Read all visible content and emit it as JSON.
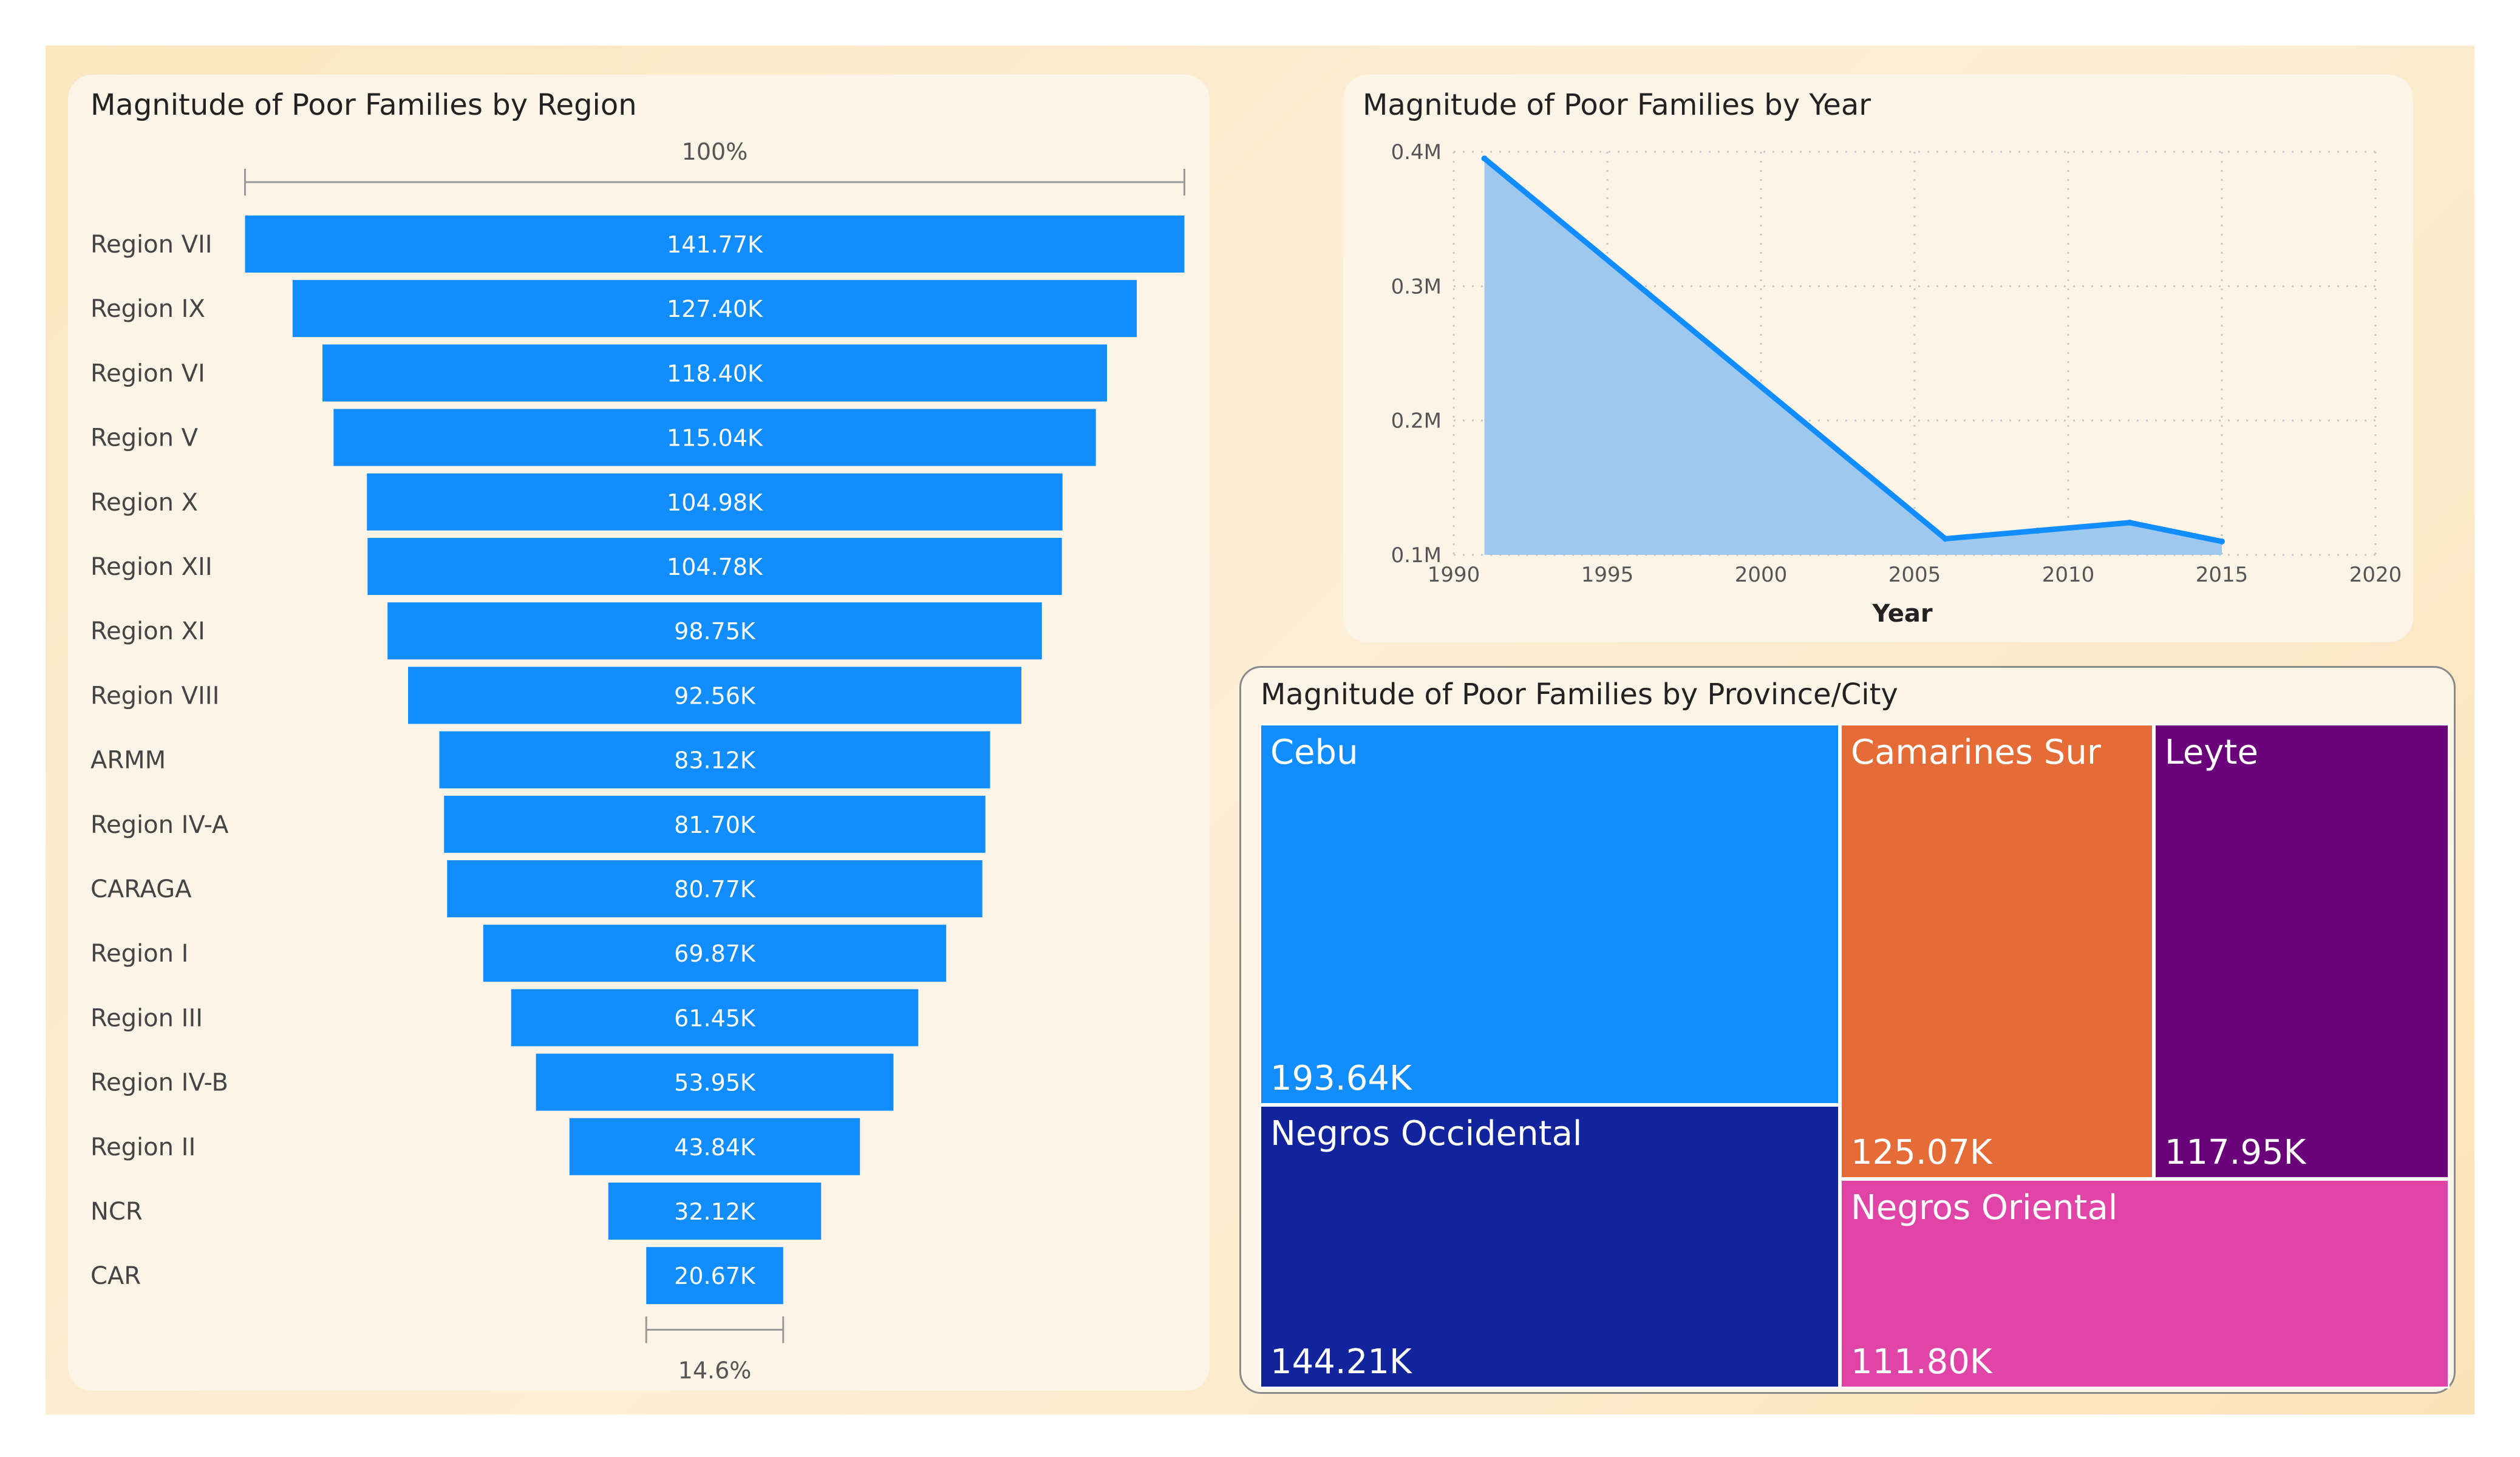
{
  "colors": {
    "bar": "#118dff",
    "area_fill": "#9ec8ee",
    "line": "#118dff",
    "card_bg": "#fcf4e6",
    "canvas_bg": "#fcecc8"
  },
  "chart_data": [
    {
      "type": "bar",
      "subtype": "funnel",
      "title": "Magnitude of Poor Families by Region",
      "top_percent_label": "100%",
      "bottom_percent_label": "14.6%",
      "categories": [
        "Region VII",
        "Region IX",
        "Region VI",
        "Region V",
        "Region X",
        "Region XII",
        "Region XI",
        "Region VIII",
        "ARMM",
        "Region IV-A",
        "CARAGA",
        "Region I",
        "Region III",
        "Region IV-B",
        "Region II",
        "NCR",
        "CAR"
      ],
      "values": [
        141770,
        127400,
        118400,
        115040,
        104980,
        104780,
        98750,
        92560,
        83120,
        81700,
        80770,
        69870,
        61450,
        53950,
        43840,
        32120,
        20670
      ],
      "value_labels": [
        "141.77K",
        "127.40K",
        "118.40K",
        "115.04K",
        "104.98K",
        "104.78K",
        "98.75K",
        "92.56K",
        "83.12K",
        "81.70K",
        "80.77K",
        "69.87K",
        "61.45K",
        "53.95K",
        "43.84K",
        "32.12K",
        "20.67K"
      ]
    },
    {
      "type": "area",
      "title": "Magnitude of Poor Families by Year",
      "xlabel": "Year",
      "ylabel": "",
      "x": [
        1991,
        2006,
        2009,
        2012,
        2015
      ],
      "y": [
        395000,
        112000,
        118000,
        124000,
        110000
      ],
      "xlim": [
        1990,
        2020
      ],
      "ylim": [
        100000,
        400000
      ],
      "x_ticks": [
        1990,
        1995,
        2000,
        2005,
        2010,
        2015,
        2020
      ],
      "y_ticks": [
        100000,
        200000,
        300000,
        400000
      ],
      "y_tick_labels": [
        "0.1M",
        "0.2M",
        "0.3M",
        "0.4M"
      ],
      "grid": true
    },
    {
      "type": "treemap",
      "title": "Magnitude of Poor Families by Province/City",
      "items": [
        {
          "name": "Cebu",
          "value": 193640,
          "label": "193.64K",
          "color": "#118dff"
        },
        {
          "name": "Negros Occidental",
          "value": 144210,
          "label": "144.21K",
          "color": "#12239e"
        },
        {
          "name": "Camarines Sur",
          "value": 125070,
          "label": "125.07K",
          "color": "#e66c37"
        },
        {
          "name": "Leyte",
          "value": 117950,
          "label": "117.95K",
          "color": "#6b007b"
        },
        {
          "name": "Negros Oriental",
          "value": 111800,
          "label": "111.80K",
          "color": "#e044a7"
        }
      ]
    }
  ]
}
